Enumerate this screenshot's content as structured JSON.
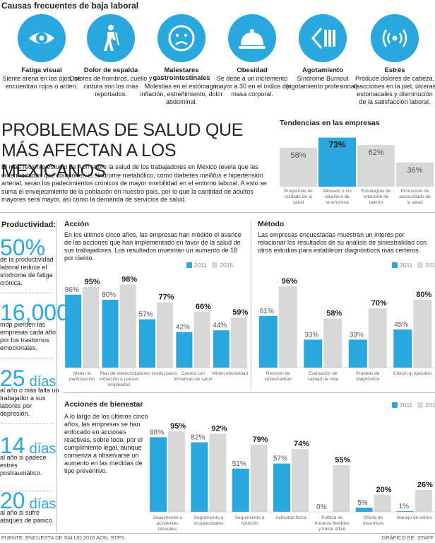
{
  "causes_title": "Causas frecuentes de baja laboral",
  "causes": [
    {
      "icon": "eye-icon",
      "name": "Fatiga visual",
      "desc": "Siente arena en los ojos, se encuentran rojos o arden."
    },
    {
      "icon": "walking-person-icon",
      "name": "Dolor de espalda",
      "desc": "Dolores de hombros, cuello y cintura son los más reportados."
    },
    {
      "icon": "sad-face-icon",
      "name": "Malestares gastrointestinales",
      "desc": "Molestias en el estómago, inflación, estreñimiento, dolor abdominal."
    },
    {
      "icon": "food-cloche-icon",
      "name": "Obesidad",
      "desc": "Se debe a un incremento mayor a 30 en el índice de masa corporal."
    },
    {
      "icon": "battery-drain-icon",
      "name": "Agotamiento",
      "desc": "Síndrome Burnout (agotamiento profesional)."
    },
    {
      "icon": "signal-waves-icon",
      "name": "Estrés",
      "desc": "Produce dolores de cabeza, reacciones en la piel, úlceras estomacales y disminución de la satisfacción laboral."
    }
  ],
  "headline": "PROBLEMAS DE SALUD QUE MÁS AFECTAN A LOS MEXICANOS",
  "intro": {
    "part1": "El más reciente estudio de Aon sobre la salud de los trabajadores en México revela que las enfermedades que componen el síndrome metabólico, como diabetes ",
    "italic": "mellitus",
    "part2": " e hipertensión arterial, serán los padecimientos crónicos de mayor morbilidad en el entorno laboral. A esto se suma el envejecimiento de la población en nuestro país, por lo que la cantidad de adultos mayores será mayor, así como la demanda de servicios de salud."
  },
  "productivity": {
    "title": "Productividad:",
    "stats": [
      {
        "num": "50%",
        "text": "de la productividad laboral reduce el síndrome de fatiga crónica."
      },
      {
        "num": "16,000",
        "text": "mdp pierden las empresas cada año por los trastornos emocionales."
      },
      {
        "num": "25",
        "unit": "días",
        "text": "al año o más falta un trabajador a sus labores por depresión."
      },
      {
        "num": "14",
        "unit": "días",
        "text": "al año si padece estrés postraumático."
      },
      {
        "num": "20",
        "unit": "días",
        "text": "al año si sufre ataques de pánico."
      }
    ]
  },
  "legend": {
    "y2011": "2011",
    "y2015": "2015"
  },
  "colors": {
    "blue": "#29a8e0",
    "gray": "#d8d8d8",
    "highlight": "#29a8e0"
  },
  "chart_data": [
    {
      "id": "tendencias",
      "type": "bar",
      "title": "Tendencias en las empresas",
      "categories": [
        "Programas de cuidado de la salud",
        "Alineado a los objetivos de la empresa",
        "Estrategias de retención de talento",
        "Promoción de autocuidado de la salud"
      ],
      "values": [
        58,
        73,
        62,
        36
      ],
      "value_labels": [
        "58%",
        "73%",
        "62%",
        "36%"
      ],
      "highlight_index": 1,
      "ylim": [
        0,
        80
      ]
    },
    {
      "id": "accion",
      "type": "bar",
      "title": "Acción",
      "text": "En los últimos cinco años, las empresas han medido el avance de las acciones que han implementado en favor de la salud de sus trabajadores. Los resultados muestran un aumento de 18 por ciento.",
      "categories": [
        "Miden la participación",
        "Plan de retención / inducción a nuevos empleados",
        "Líderes involucrados",
        "Cuenta con iniciativas de salud",
        "Miden efectividad"
      ],
      "series": [
        {
          "name": "2011",
          "values": [
            86,
            80,
            57,
            42,
            44
          ],
          "labels": [
            "86%",
            "80%",
            "57%",
            "42%",
            "44%"
          ]
        },
        {
          "name": "2015",
          "values": [
            95,
            98,
            77,
            66,
            59
          ],
          "labels": [
            "95%",
            "98%",
            "77%",
            "66%",
            "59%"
          ]
        }
      ],
      "ylim": [
        0,
        100
      ]
    },
    {
      "id": "metodo",
      "type": "bar",
      "title": "Método",
      "text": "Las empresas encuestadas muestran un interés por relacionar los resultados de su análisis de siniestralidad con otros estudios para establecer diagnósticos más certeros.",
      "categories": [
        "Revisión de siniestralidad",
        "Evaluación de calidad de vida",
        "Pruebas de diagnóstico",
        "Check up ejecutivo"
      ],
      "series": [
        {
          "name": "2011",
          "values": [
            61,
            33,
            33,
            45
          ],
          "labels": [
            "61%",
            "33%",
            "33%",
            "45%"
          ]
        },
        {
          "name": "2015",
          "values": [
            96,
            58,
            70,
            80
          ],
          "labels": [
            "96%",
            "58%",
            "70%",
            "80%"
          ]
        }
      ],
      "ylim": [
        0,
        100
      ]
    },
    {
      "id": "bienestar",
      "type": "bar",
      "title": "Acciones de bienestar",
      "text": "A lo largo de los últimos cinco años, las empresas se han enfocado en acciones reactivas, sobre todo, por el cumplimiento legal, aunque comienza a observarse un aumento en las medidas de tipo preventivo.",
      "categories": [
        "Seguimiento a accidentes laborales",
        "Seguimiento a incapacidades",
        "Seguimiento a nutrición",
        "Actividad física",
        "Política de horarios flexibles y home office",
        "Oferta de incentivos",
        "Manejo de estrés"
      ],
      "series": [
        {
          "name": "2011",
          "values": [
            88,
            82,
            51,
            57,
            0,
            5,
            1
          ],
          "labels": [
            "88%",
            "82%",
            "51%",
            "57%",
            "0%",
            "5%",
            "1%"
          ]
        },
        {
          "name": "2015",
          "values": [
            95,
            92,
            79,
            74,
            55,
            20,
            26
          ],
          "labels": [
            "95%",
            "92%",
            "79%",
            "74%",
            "55%",
            "20%",
            "26%"
          ]
        }
      ],
      "ylim": [
        0,
        100
      ]
    }
  ],
  "footer": {
    "source": "FUENTE: ENCUESTA DE SALUD 2016 AON, STPS.",
    "credit": "GRÁFICO EE: STAFF"
  }
}
